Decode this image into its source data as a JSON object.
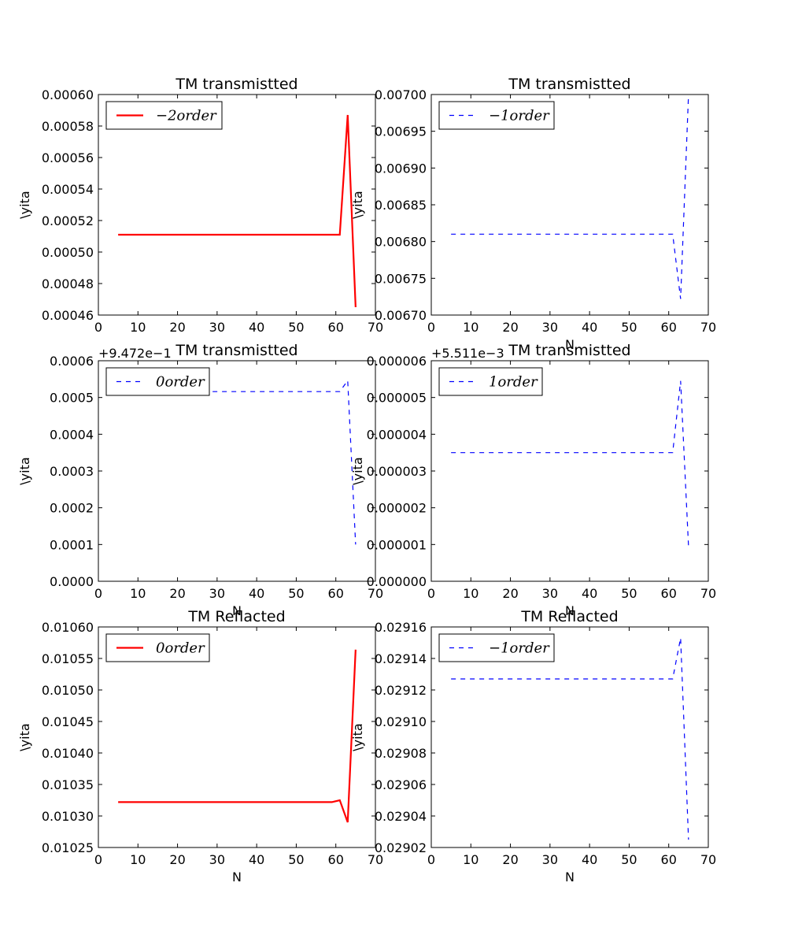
{
  "chart_data": [
    {
      "type": "line",
      "title": "TM transmistted",
      "xlabel": "",
      "ylabel": "\\yita",
      "xlim": [
        0,
        70
      ],
      "xticks": [
        0,
        10,
        20,
        30,
        40,
        50,
        60,
        70
      ],
      "xtick_labels": [
        "0",
        "10",
        "20",
        "30",
        "40",
        "50",
        "60",
        "70"
      ],
      "ylim": [
        0.00046,
        0.0006
      ],
      "yticks": [
        0.00046,
        0.00048,
        0.0005,
        0.00052,
        0.00054,
        0.00056,
        0.00058,
        0.0006
      ],
      "ytick_labels": [
        "0.00046",
        "0.00048",
        "0.00050",
        "0.00052",
        "0.00054",
        "0.00056",
        "0.00058",
        "0.00060"
      ],
      "offset": "",
      "legend_position": "upper-left",
      "series": [
        {
          "name": "−2order",
          "color": "#ff0000",
          "style": "solid",
          "x": [
            5,
            7,
            9,
            11,
            13,
            15,
            17,
            19,
            21,
            23,
            25,
            27,
            29,
            31,
            33,
            35,
            37,
            39,
            41,
            43,
            45,
            47,
            49,
            51,
            53,
            55,
            57,
            59,
            61,
            63,
            65
          ],
          "y": [
            0.000511,
            0.000511,
            0.000511,
            0.000511,
            0.000511,
            0.000511,
            0.000511,
            0.000511,
            0.000511,
            0.000511,
            0.000511,
            0.000511,
            0.000511,
            0.000511,
            0.000511,
            0.000511,
            0.000511,
            0.000511,
            0.000511,
            0.000511,
            0.000511,
            0.000511,
            0.000511,
            0.000511,
            0.000511,
            0.000511,
            0.000511,
            0.000511,
            0.000511,
            0.000587,
            0.000465
          ]
        }
      ]
    },
    {
      "type": "line",
      "title": "TM transmistted",
      "xlabel": "N",
      "ylabel": "\\yita",
      "xlim": [
        0,
        70
      ],
      "xticks": [
        0,
        10,
        20,
        30,
        40,
        50,
        60,
        70
      ],
      "xtick_labels": [
        "0",
        "10",
        "20",
        "30",
        "40",
        "50",
        "60",
        "70"
      ],
      "ylim": [
        0.0067,
        0.007
      ],
      "yticks": [
        0.0067,
        0.00675,
        0.0068,
        0.00685,
        0.0069,
        0.00695,
        0.007
      ],
      "ytick_labels": [
        "0.00670",
        "0.00675",
        "0.00680",
        "0.00685",
        "0.00690",
        "0.00695",
        "0.00700"
      ],
      "offset": "",
      "legend_position": "upper-left",
      "series": [
        {
          "name": "−1order",
          "color": "#0000ff",
          "style": "dashed",
          "x": [
            5,
            7,
            9,
            11,
            13,
            15,
            17,
            19,
            21,
            23,
            25,
            27,
            29,
            31,
            33,
            35,
            37,
            39,
            41,
            43,
            45,
            47,
            49,
            51,
            53,
            55,
            57,
            59,
            61,
            63,
            65
          ],
          "y": [
            0.00681,
            0.00681,
            0.00681,
            0.00681,
            0.00681,
            0.00681,
            0.00681,
            0.00681,
            0.00681,
            0.00681,
            0.00681,
            0.00681,
            0.00681,
            0.00681,
            0.00681,
            0.00681,
            0.00681,
            0.00681,
            0.00681,
            0.00681,
            0.00681,
            0.00681,
            0.00681,
            0.00681,
            0.00681,
            0.00681,
            0.00681,
            0.00681,
            0.00681,
            0.006722,
            0.007
          ]
        }
      ]
    },
    {
      "type": "line",
      "title": "TM transmistted",
      "xlabel": "N",
      "ylabel": "\\yita",
      "xlim": [
        0,
        70
      ],
      "xticks": [
        0,
        10,
        20,
        30,
        40,
        50,
        60,
        70
      ],
      "xtick_labels": [
        "0",
        "10",
        "20",
        "30",
        "40",
        "50",
        "60",
        "70"
      ],
      "ylim": [
        0,
        0.0006
      ],
      "yticks": [
        0,
        0.0001,
        0.0002,
        0.0003,
        0.0004,
        0.0005,
        0.0006
      ],
      "ytick_labels": [
        "0.0000",
        "0.0001",
        "0.0002",
        "0.0003",
        "0.0004",
        "0.0005",
        "0.0006"
      ],
      "offset": "+9.472e−1",
      "legend_position": "upper-left",
      "series": [
        {
          "name": "0order",
          "color": "#0000ff",
          "style": "dashed",
          "x": [
            5,
            7,
            9,
            11,
            13,
            15,
            17,
            19,
            21,
            23,
            25,
            27,
            29,
            31,
            33,
            35,
            37,
            39,
            41,
            43,
            45,
            47,
            49,
            51,
            53,
            55,
            57,
            59,
            61,
            63,
            65
          ],
          "y": [
            0.000516,
            0.000516,
            0.000516,
            0.000516,
            0.000516,
            0.000516,
            0.000516,
            0.000516,
            0.000516,
            0.000516,
            0.000516,
            0.000516,
            0.000516,
            0.000516,
            0.000516,
            0.000516,
            0.000516,
            0.000516,
            0.000516,
            0.000516,
            0.000516,
            0.000516,
            0.000516,
            0.000516,
            0.000516,
            0.000516,
            0.000516,
            0.000516,
            0.000516,
            0.000546,
            0.0001
          ]
        }
      ]
    },
    {
      "type": "line",
      "title": "TM transmistted",
      "xlabel": "N",
      "ylabel": "\\yita",
      "xlim": [
        0,
        70
      ],
      "xticks": [
        0,
        10,
        20,
        30,
        40,
        50,
        60,
        70
      ],
      "xtick_labels": [
        "0",
        "10",
        "20",
        "30",
        "40",
        "50",
        "60",
        "70"
      ],
      "ylim": [
        0,
        6e-06
      ],
      "yticks": [
        0,
        1e-06,
        2e-06,
        3e-06,
        4e-06,
        5e-06,
        6e-06
      ],
      "ytick_labels": [
        "0.000000",
        "0.000001",
        "0.000002",
        "0.000003",
        "0.000004",
        "0.000005",
        "0.000006"
      ],
      "offset": "+5.511e−3",
      "legend_position": "upper-left",
      "series": [
        {
          "name": "1order",
          "color": "#0000ff",
          "style": "dashed",
          "x": [
            5,
            7,
            9,
            11,
            13,
            15,
            17,
            19,
            21,
            23,
            25,
            27,
            29,
            31,
            33,
            35,
            37,
            39,
            41,
            43,
            45,
            47,
            49,
            51,
            53,
            55,
            57,
            59,
            61,
            63,
            65
          ],
          "y": [
            3.5e-06,
            3.5e-06,
            3.5e-06,
            3.5e-06,
            3.5e-06,
            3.5e-06,
            3.5e-06,
            3.5e-06,
            3.5e-06,
            3.5e-06,
            3.5e-06,
            3.5e-06,
            3.5e-06,
            3.5e-06,
            3.5e-06,
            3.5e-06,
            3.5e-06,
            3.5e-06,
            3.5e-06,
            3.5e-06,
            3.5e-06,
            3.5e-06,
            3.5e-06,
            3.5e-06,
            3.5e-06,
            3.5e-06,
            3.5e-06,
            3.5e-06,
            3.5e-06,
            5.45e-06,
            9.5e-07
          ]
        }
      ]
    },
    {
      "type": "line",
      "title": "TM Reflacted",
      "xlabel": "N",
      "ylabel": "\\yita",
      "xlim": [
        0,
        70
      ],
      "xticks": [
        0,
        10,
        20,
        30,
        40,
        50,
        60,
        70
      ],
      "xtick_labels": [
        "0",
        "10",
        "20",
        "30",
        "40",
        "50",
        "60",
        "70"
      ],
      "ylim": [
        0.01025,
        0.0106
      ],
      "yticks": [
        0.01025,
        0.0103,
        0.01035,
        0.0104,
        0.01045,
        0.0105,
        0.01055,
        0.0106
      ],
      "ytick_labels": [
        "0.01025",
        "0.01030",
        "0.01035",
        "0.01040",
        "0.01045",
        "0.01050",
        "0.01055",
        "0.01060"
      ],
      "offset": "",
      "legend_position": "upper-left",
      "series": [
        {
          "name": "0order",
          "color": "#ff0000",
          "style": "solid",
          "x": [
            5,
            7,
            9,
            11,
            13,
            15,
            17,
            19,
            21,
            23,
            25,
            27,
            29,
            31,
            33,
            35,
            37,
            39,
            41,
            43,
            45,
            47,
            49,
            51,
            53,
            55,
            57,
            59,
            61,
            63,
            65
          ],
          "y": [
            0.010322,
            0.010322,
            0.010322,
            0.010322,
            0.010322,
            0.010322,
            0.010322,
            0.010322,
            0.010322,
            0.010322,
            0.010322,
            0.010322,
            0.010322,
            0.010322,
            0.010322,
            0.010322,
            0.010322,
            0.010322,
            0.010322,
            0.010322,
            0.010322,
            0.010322,
            0.010322,
            0.010322,
            0.010322,
            0.010322,
            0.010322,
            0.010322,
            0.010325,
            0.01029,
            0.010564
          ]
        }
      ]
    },
    {
      "type": "line",
      "title": "TM Reflacted",
      "xlabel": "N",
      "ylabel": "\\yita",
      "xlim": [
        0,
        70
      ],
      "xticks": [
        0,
        10,
        20,
        30,
        40,
        50,
        60,
        70
      ],
      "xtick_labels": [
        "0",
        "10",
        "20",
        "30",
        "40",
        "50",
        "60",
        "70"
      ],
      "ylim": [
        0.02902,
        0.02916
      ],
      "yticks": [
        0.02902,
        0.02904,
        0.02906,
        0.02908,
        0.0291,
        0.02912,
        0.02914,
        0.02916
      ],
      "ytick_labels": [
        "0.02902",
        "0.02904",
        "0.02906",
        "0.02908",
        "0.02910",
        "0.02912",
        "0.02914",
        "0.02916"
      ],
      "offset": "",
      "legend_position": "upper-left",
      "series": [
        {
          "name": "−1order",
          "color": "#0000ff",
          "style": "dashed",
          "x": [
            5,
            7,
            9,
            11,
            13,
            15,
            17,
            19,
            21,
            23,
            25,
            27,
            29,
            31,
            33,
            35,
            37,
            39,
            41,
            43,
            45,
            47,
            49,
            51,
            53,
            55,
            57,
            59,
            61,
            63,
            65
          ],
          "y": [
            0.029127,
            0.029127,
            0.029127,
            0.029127,
            0.029127,
            0.029127,
            0.029127,
            0.029127,
            0.029127,
            0.029127,
            0.029127,
            0.029127,
            0.029127,
            0.029127,
            0.029127,
            0.029127,
            0.029127,
            0.029127,
            0.029127,
            0.029127,
            0.029127,
            0.029127,
            0.029127,
            0.029127,
            0.029127,
            0.029127,
            0.029127,
            0.029127,
            0.029127,
            0.029153,
            0.029025
          ]
        }
      ]
    }
  ]
}
